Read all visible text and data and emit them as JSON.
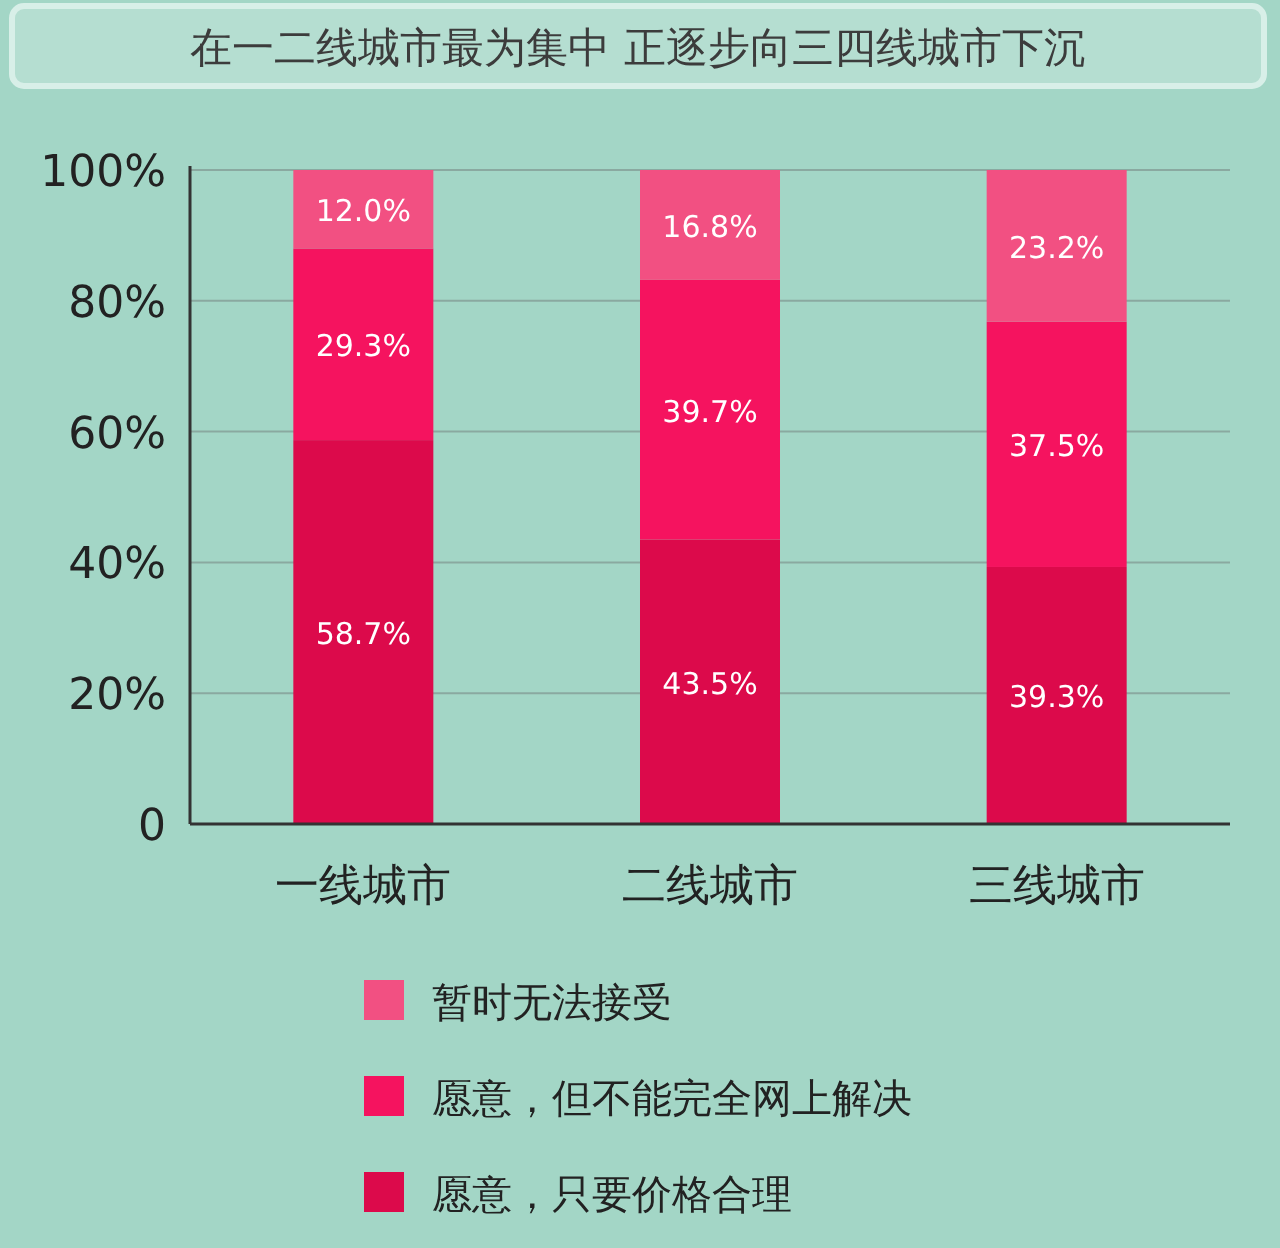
{
  "chart_data": {
    "type": "bar",
    "title": "在一二线城市最为集中  正逐步向三四线城市下沉",
    "categories": [
      "一线城市",
      "二线城市",
      "三线城市"
    ],
    "stacked": true,
    "series": [
      {
        "name": "愿意，只要价格合理",
        "color": "#dc0a4b",
        "values": [
          58.7,
          43.5,
          39.3
        ],
        "value_labels": [
          "58.7%",
          "43.5%",
          "39.3%"
        ]
      },
      {
        "name": "愿意，但不能完全网上解决",
        "color": "#f5135f",
        "values": [
          29.3,
          39.7,
          37.5
        ],
        "value_labels": [
          "29.3%",
          "39.7%",
          "37.5%"
        ]
      },
      {
        "name": "暂时无法接受",
        "color": "#f25082",
        "values": [
          12.0,
          16.8,
          23.2
        ],
        "value_labels": [
          "12.0%",
          "16.8%",
          "23.2%"
        ]
      }
    ],
    "ylim": [
      0,
      100
    ],
    "yticks": [
      0,
      {
        "value": 20,
        "label": "20%"
      },
      {
        "value": 40,
        "label": "40%"
      },
      {
        "value": 60,
        "label": "60%"
      },
      {
        "value": 80,
        "label": "80%"
      },
      {
        "value": 100,
        "label": "100%"
      }
    ],
    "grid": "y",
    "legend": "bottom"
  }
}
